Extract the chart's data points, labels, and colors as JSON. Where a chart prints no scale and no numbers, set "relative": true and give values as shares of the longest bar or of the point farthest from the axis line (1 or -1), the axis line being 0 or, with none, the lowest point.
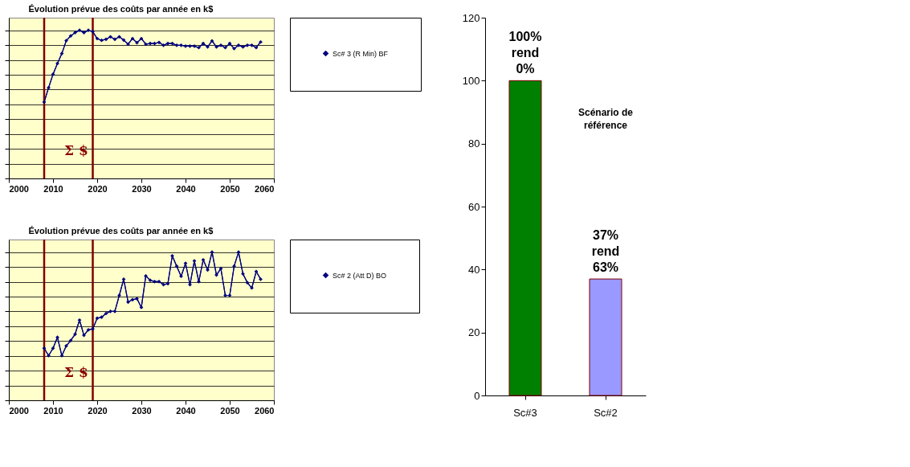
{
  "chart_data": [
    {
      "type": "line",
      "title": "Évolution prévue des coûts par année en k$",
      "relative": true,
      "xlim": [
        2000,
        2060
      ],
      "xticks": [
        2000,
        2010,
        2020,
        2030,
        2040,
        2050,
        2060
      ],
      "grid": "y",
      "legend": "right",
      "marker": "diamond",
      "line_style": "solid",
      "tick_labels": "x",
      "x": [
        2008,
        2009,
        2010,
        2011,
        2012,
        2013,
        2014,
        2015,
        2016,
        2017,
        2018,
        2019,
        2020,
        2021,
        2022,
        2023,
        2024,
        2025,
        2026,
        2027,
        2028,
        2029,
        2030,
        2031,
        2032,
        2033,
        2034,
        2035,
        2036,
        2037,
        2038,
        2039,
        2040,
        2041,
        2042,
        2043,
        2044,
        2045,
        2046,
        2047,
        2048,
        2049,
        2050,
        2051,
        2052,
        2053,
        2054,
        2055,
        2056,
        2057
      ],
      "series": [
        {
          "name": "Sc# 3 (R Min) BF",
          "color": "#000080",
          "values": [
            0.516,
            0.612,
            0.703,
            0.776,
            0.843,
            0.93,
            0.962,
            0.984,
            1.0,
            0.984,
            1.0,
            0.991,
            0.944,
            0.932,
            0.939,
            0.956,
            0.939,
            0.956,
            0.934,
            0.906,
            0.944,
            0.916,
            0.944,
            0.906,
            0.911,
            0.911,
            0.918,
            0.899,
            0.911,
            0.911,
            0.899,
            0.899,
            0.893,
            0.893,
            0.893,
            0.883,
            0.911,
            0.888,
            0.928,
            0.888,
            0.899,
            0.883,
            0.911,
            0.876,
            0.899,
            0.888,
            0.899,
            0.899,
            0.883,
            0.921
          ]
        }
      ],
      "ref_lines": [
        {
          "axis": "x",
          "value": 2008,
          "color": "#800000"
        },
        {
          "axis": "x",
          "value": 2019,
          "color": "#800000"
        }
      ],
      "annotations": [
        "Σ $"
      ]
    },
    {
      "type": "line",
      "title": "Évolution prévue des coûts par année en k$",
      "relative": true,
      "xlim": [
        2000,
        2060
      ],
      "xticks": [
        2000,
        2010,
        2020,
        2030,
        2040,
        2050,
        2060
      ],
      "grid": "y",
      "legend": "right",
      "marker": "diamond",
      "line_style": "solid",
      "tick_labels": "x",
      "x": [
        2008,
        2009,
        2010,
        2011,
        2012,
        2013,
        2014,
        2015,
        2016,
        2017,
        2018,
        2019,
        2020,
        2021,
        2022,
        2023,
        2024,
        2025,
        2026,
        2027,
        2028,
        2029,
        2030,
        2031,
        2032,
        2033,
        2034,
        2035,
        2036,
        2037,
        2038,
        2039,
        2040,
        2041,
        2042,
        2043,
        2044,
        2045,
        2046,
        2047,
        2048,
        2049,
        2050,
        2051,
        2052,
        2053,
        2054,
        2055,
        2056,
        2057
      ],
      "series": [
        {
          "name": "Sc# 2 (Att D) BO",
          "color": "#000080",
          "values": [
            0.351,
            0.301,
            0.351,
            0.425,
            0.301,
            0.367,
            0.403,
            0.446,
            0.541,
            0.439,
            0.475,
            0.482,
            0.554,
            0.561,
            0.586,
            0.6,
            0.6,
            0.708,
            0.817,
            0.663,
            0.679,
            0.686,
            0.627,
            0.839,
            0.81,
            0.801,
            0.801,
            0.781,
            0.787,
            0.975,
            0.905,
            0.837,
            0.925,
            0.781,
            0.941,
            0.801,
            0.948,
            0.88,
            1.0,
            0.846,
            0.889,
            0.708,
            0.708,
            0.905,
            1.0,
            0.853,
            0.794,
            0.758,
            0.869,
            0.817
          ]
        }
      ],
      "ref_lines": [
        {
          "axis": "x",
          "value": 2008,
          "color": "#800000"
        },
        {
          "axis": "x",
          "value": 2019,
          "color": "#800000"
        }
      ],
      "annotations": [
        "Σ $"
      ]
    },
    {
      "type": "bar",
      "categories": [
        "Sc#3",
        "Sc#2"
      ],
      "values": [
        100,
        37
      ],
      "colors": [
        "#008000",
        "#9999ff"
      ],
      "ylim": [
        0,
        120
      ],
      "yticks": [
        0,
        20,
        40,
        60,
        80,
        100,
        120
      ],
      "grid": false,
      "annotations": [
        {
          "text": "100%\nrend\n0%",
          "x": "Sc#3",
          "y": 100
        },
        {
          "text": "37%\nrend\n63%",
          "x": "Sc#2",
          "y": 37
        },
        "Scénario de référence"
      ]
    }
  ]
}
